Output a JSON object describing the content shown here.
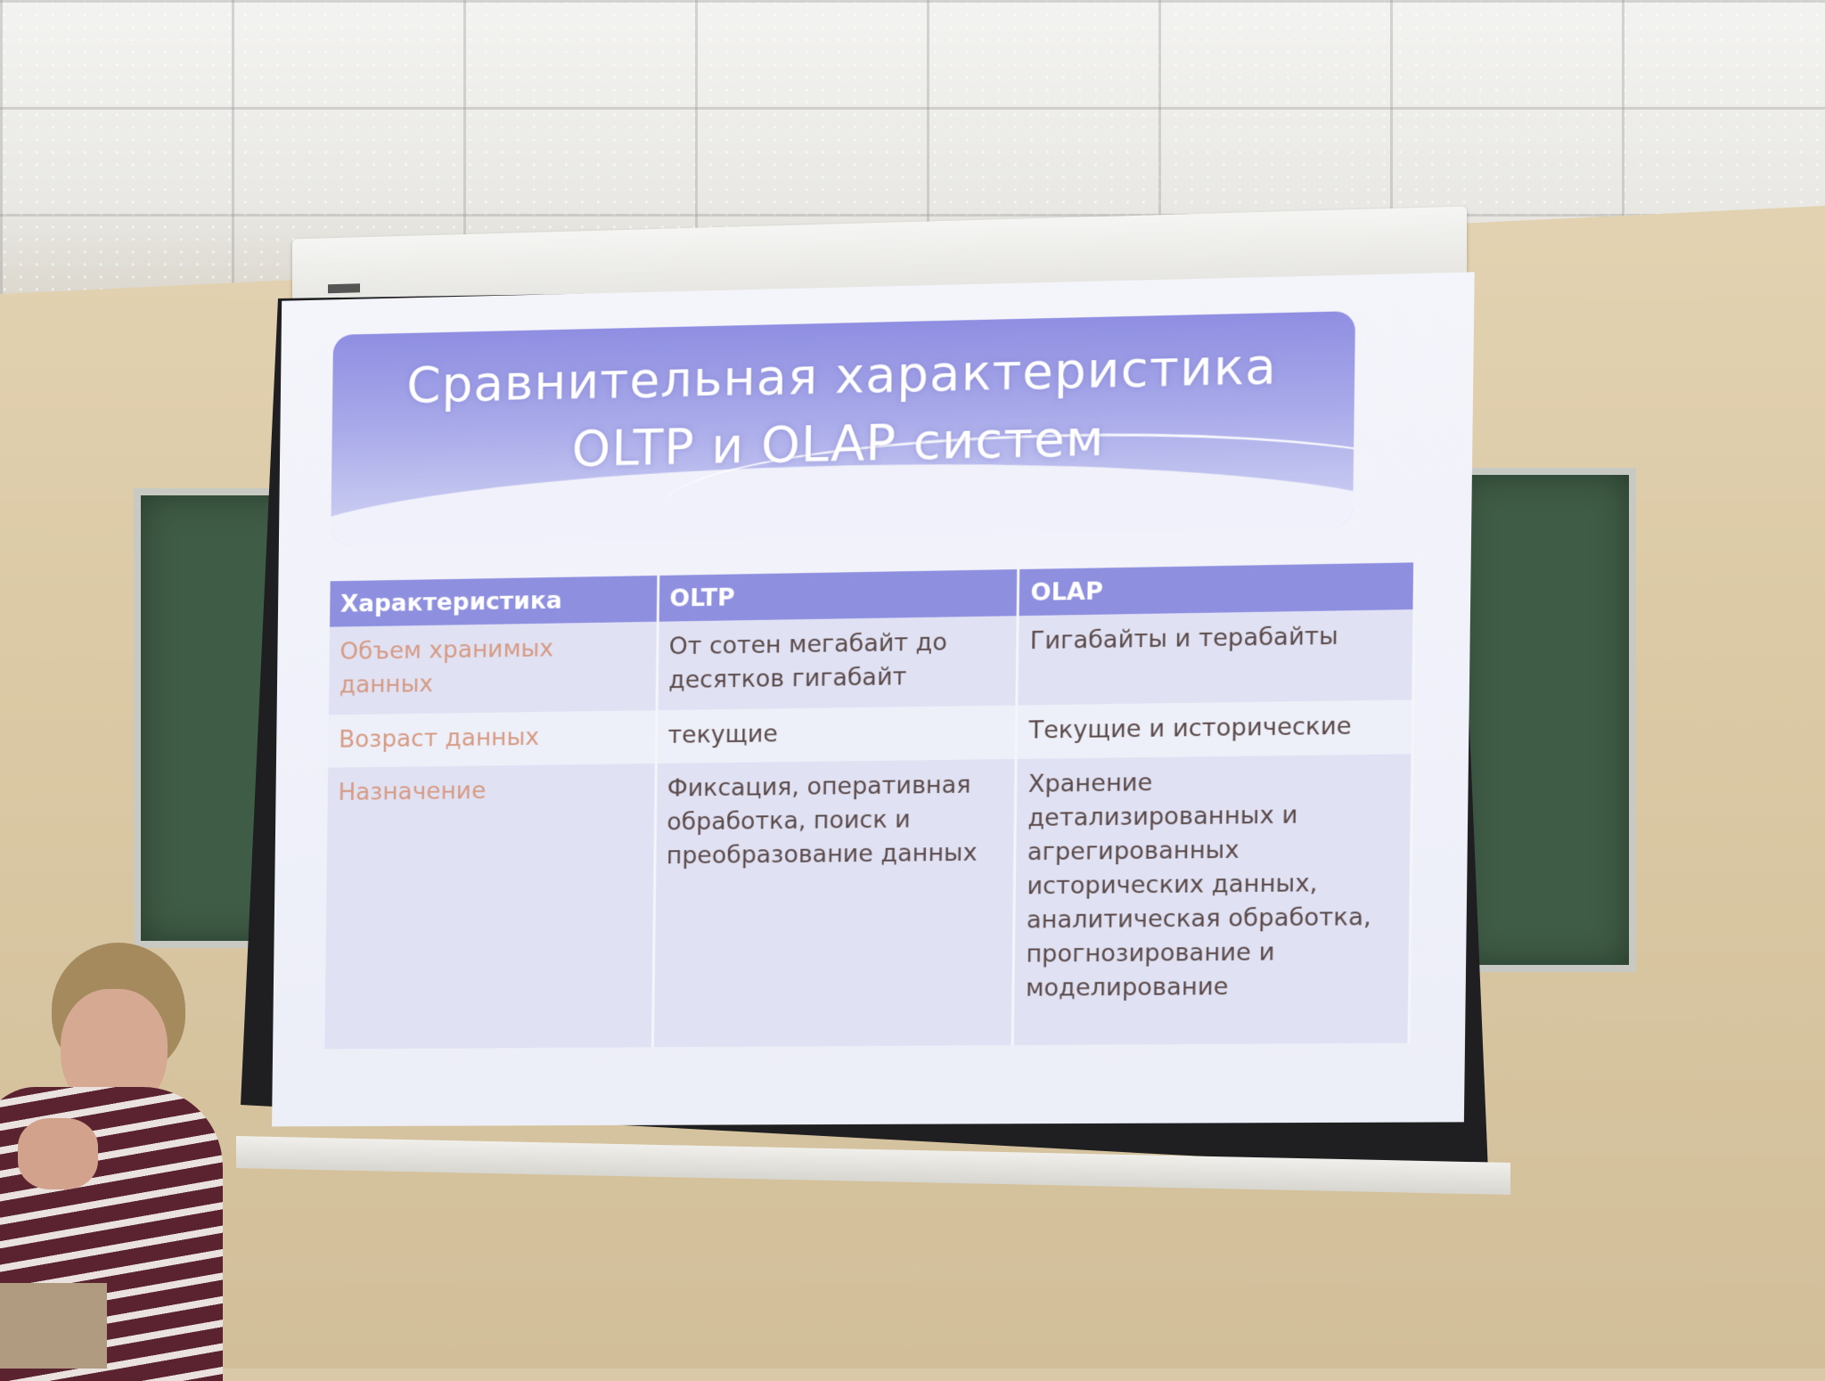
{
  "slide": {
    "title_line1": "Сравнительная характеристика",
    "title_line2": "OLTP и OLAP систем",
    "table": {
      "headers": [
        "Характеристика",
        "OLTP",
        "OLAP"
      ],
      "rows": [
        [
          "Объем хранимых данных",
          "От сотен мегабайт до десятков гигабайт",
          "Гигабайты и терабайты"
        ],
        [
          "Возраст данных",
          "текущие",
          "Текущие и исторические"
        ],
        [
          "Назначение",
          "Фиксация, оперативная обработка, поиск и преобразование данных",
          "Хранение детализированных и агрегированных исторических данных, аналитическая обработка, прогнозирование и моделирование"
        ]
      ]
    }
  },
  "colors": {
    "header_bg": "#8f8fe0",
    "row_label": "#d79a84",
    "cell_text": "#5b4a4a"
  }
}
